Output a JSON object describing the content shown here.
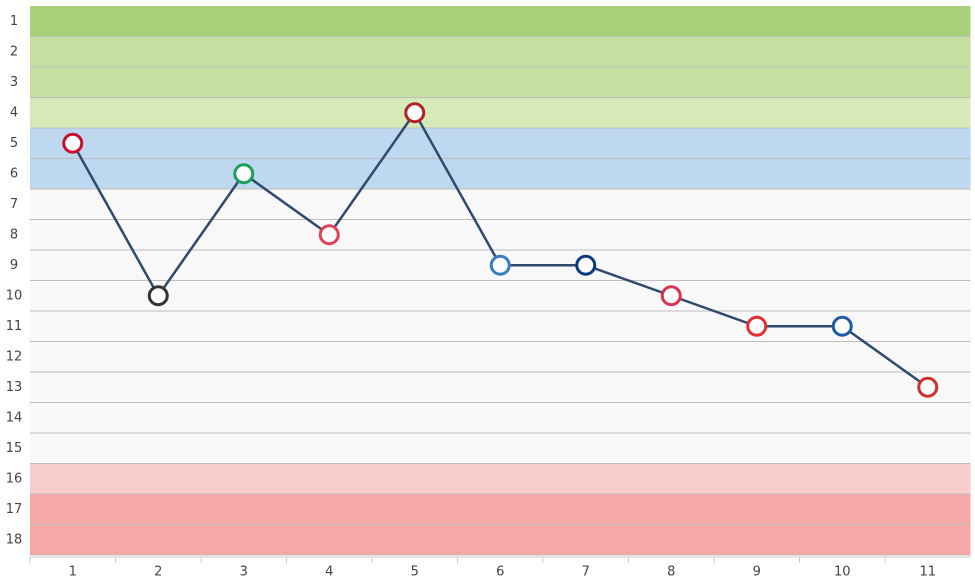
{
  "chart_data": {
    "type": "line",
    "x": [
      1,
      2,
      3,
      4,
      5,
      6,
      7,
      8,
      9,
      10,
      11
    ],
    "series": [
      {
        "color": "#2f4a6e",
        "values": [
          5,
          10,
          6,
          8,
          4,
          9,
          9,
          10,
          11,
          11,
          13
        ]
      }
    ],
    "xlim": [
      0.5,
      11.5
    ],
    "xticks": [
      1,
      2,
      3,
      4,
      5,
      6,
      7,
      8,
      9,
      10,
      11
    ],
    "ylim": [
      18.5,
      0.5
    ],
    "yticks": [
      1,
      2,
      3,
      4,
      5,
      6,
      7,
      8,
      9,
      10,
      11,
      12,
      13,
      14,
      15,
      16,
      17,
      18
    ],
    "bands": [
      {
        "from": 1,
        "to": 1,
        "color": "#a9d07a"
      },
      {
        "from": 2,
        "to": 3,
        "color": "#c4df9f"
      },
      {
        "from": 4,
        "to": 4,
        "color": "#d6eab9"
      },
      {
        "from": 5,
        "to": 6,
        "color": "#bdd8ef"
      },
      {
        "from": 7,
        "to": 15,
        "color": "#f8f8f8"
      },
      {
        "from": 16,
        "to": 16,
        "color": "#f9cdcd"
      },
      {
        "from": 17,
        "to": 18,
        "color": "#f5a8a5"
      }
    ],
    "marker_colors": [
      "#c8102e",
      "#333333",
      "#1e9e5a",
      "#dd4455",
      "#b22222",
      "#3a7cc0",
      "#0a3b7c",
      "#dc3050",
      "#e03030",
      "#1e5ba8",
      "#d03030"
    ]
  }
}
